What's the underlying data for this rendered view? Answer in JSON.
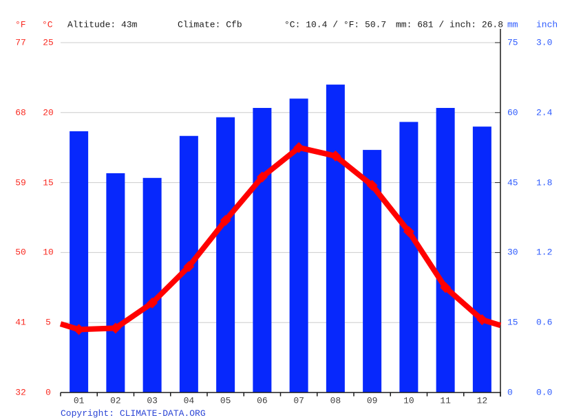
{
  "header": {
    "left_axis_f_label": "°F",
    "left_axis_c_label": "°C",
    "altitude": "Altitude: 43m",
    "climate": "Climate: Cfb",
    "temperature_summary": "°C: 10.4 / °F: 50.7",
    "precipitation_summary": "mm: 681 / inch: 26.8",
    "right_axis_mm_label": "mm",
    "right_axis_inch_label": "inch"
  },
  "footer": {
    "copyright_label": "Copyright: ",
    "link_text": "CLIMATE-DATA.ORG"
  },
  "colors": {
    "bar_blue": "#0728fc",
    "line_red": "#ff0000",
    "red_text": "#f92a21",
    "blue_text": "#2e5bfe",
    "link_blue": "#2b44d5",
    "grid_gray": "#cccccc",
    "axis_black": "#1a1a1a",
    "month_text": "#3d3d3d"
  },
  "chart_data": {
    "type": "bar+line combo (climate chart)",
    "categories": [
      "01",
      "02",
      "03",
      "04",
      "05",
      "06",
      "07",
      "08",
      "09",
      "10",
      "11",
      "12"
    ],
    "series": [
      {
        "name": "precipitation",
        "type": "bar",
        "unit": "mm",
        "values": [
          56,
          47,
          46,
          55,
          59,
          61,
          63,
          66,
          52,
          58,
          61,
          57
        ]
      },
      {
        "name": "temperature",
        "type": "line",
        "unit": "°C",
        "values": [
          4.5,
          4.6,
          6.4,
          9.0,
          12.3,
          15.4,
          17.5,
          16.9,
          14.8,
          11.5,
          7.5,
          5.2
        ],
        "edge_values": [
          4.9,
          4.8
        ]
      }
    ],
    "axes": {
      "temp_c_ticks": [
        "25",
        "20",
        "15",
        "10",
        "5",
        "0"
      ],
      "temp_f_ticks": [
        "77",
        "68",
        "59",
        "50",
        "41",
        "32"
      ],
      "precip_mm_ticks": [
        "75",
        "60",
        "45",
        "30",
        "15",
        "0"
      ],
      "precip_inch_ticks": [
        "3.0",
        "2.4",
        "1.8",
        "1.2",
        "0.6",
        "0.0"
      ],
      "temp_c_range": [
        0,
        25
      ],
      "precip_mm_range": [
        0,
        75
      ],
      "grid": true,
      "legend": "none"
    },
    "annual_summary": {
      "avg_temp_c": 10.4,
      "avg_temp_f": 50.7,
      "total_precip_mm": 681,
      "total_precip_inch": 26.8
    }
  }
}
